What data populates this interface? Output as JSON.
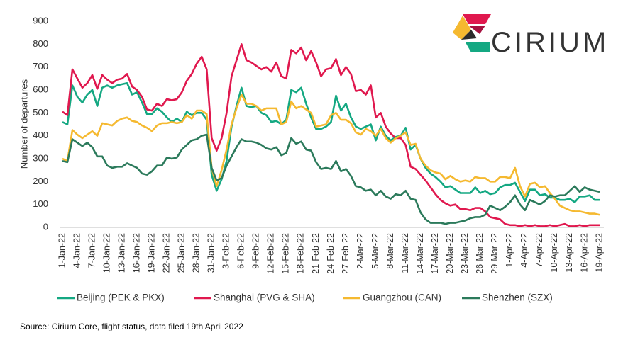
{
  "chart_data": {
    "type": "line",
    "y_label": "Number of departures",
    "source": "Source: Cirium Core, flight status, data filed 19th April 2022",
    "logo": "CIRIUM",
    "ylim": [
      0,
      900
    ],
    "yticks": [
      0,
      100,
      200,
      300,
      400,
      500,
      600,
      700,
      800,
      900
    ],
    "grid": false,
    "legend": "bottom",
    "categories": [
      "1-Jan-22",
      null,
      null,
      "4-Jan-22",
      null,
      null,
      "7-Jan-22",
      null,
      null,
      "10-Jan-22",
      null,
      null,
      "13-Jan-22",
      null,
      null,
      "16-Jan-22",
      null,
      null,
      "19-Jan-22",
      null,
      null,
      "22-Jan-22",
      null,
      null,
      "25-Jan-22",
      null,
      null,
      "28-Jan-22",
      null,
      null,
      "31-Jan-22",
      null,
      null,
      "3-Feb-22",
      null,
      null,
      "6-Feb-22",
      null,
      null,
      "9-Feb-22",
      null,
      null,
      "12-Feb-22",
      null,
      null,
      "15-Feb-22",
      null,
      null,
      "18-Feb-22",
      null,
      null,
      "21-Feb-22",
      null,
      null,
      "24-Feb-22",
      null,
      null,
      "27-Feb-22",
      null,
      null,
      "2-Mar-22",
      null,
      null,
      "5-Mar-22",
      null,
      null,
      "8-Mar-22",
      null,
      null,
      "11-Mar-22",
      null,
      null,
      "14-Mar-22",
      null,
      null,
      "17-Mar-22",
      null,
      null,
      "20-Mar-22",
      null,
      null,
      "23-Mar-22",
      null,
      null,
      "26-Mar-22",
      null,
      null,
      "29-Mar-22",
      null,
      null,
      "1-Apr-22",
      null,
      null,
      "4-Apr-22",
      null,
      null,
      "7-Apr-22",
      null,
      null,
      "10-Apr-22",
      null,
      null,
      "13-Apr-22",
      null,
      null,
      "16-Apr-22",
      null,
      null,
      "19-Apr-22"
    ],
    "series": [
      {
        "name": "Beijing (PEK & PKX)",
        "color": "#14a882",
        "values": [
          460,
          450,
          620,
          570,
          545,
          580,
          600,
          530,
          610,
          620,
          610,
          620,
          625,
          630,
          580,
          590,
          545,
          495,
          495,
          520,
          505,
          480,
          460,
          475,
          460,
          505,
          490,
          500,
          500,
          470,
          230,
          160,
          210,
          290,
          440,
          530,
          610,
          530,
          525,
          530,
          500,
          490,
          460,
          465,
          450,
          470,
          600,
          590,
          610,
          540,
          480,
          430,
          430,
          440,
          460,
          575,
          510,
          540,
          480,
          440,
          430,
          440,
          450,
          380,
          440,
          400,
          380,
          395,
          400,
          435,
          340,
          360,
          300,
          260,
          235,
          220,
          200,
          175,
          180,
          165,
          150,
          150,
          150,
          175,
          150,
          160,
          145,
          150,
          175,
          185,
          185,
          195,
          155,
          115,
          165,
          165,
          140,
          145,
          130,
          130,
          120,
          120,
          125,
          110,
          135,
          135,
          140,
          120,
          120
        ]
      },
      {
        "name": "Shanghai (PVG & SHA)",
        "color": "#e0184e",
        "values": [
          505,
          490,
          690,
          650,
          610,
          630,
          665,
          605,
          665,
          645,
          630,
          645,
          650,
          670,
          615,
          600,
          570,
          515,
          510,
          540,
          530,
          560,
          555,
          560,
          590,
          640,
          670,
          715,
          745,
          690,
          390,
          335,
          390,
          500,
          660,
          730,
          800,
          730,
          720,
          705,
          690,
          700,
          680,
          720,
          660,
          650,
          775,
          760,
          785,
          730,
          770,
          720,
          660,
          690,
          695,
          735,
          665,
          700,
          670,
          595,
          600,
          580,
          620,
          480,
          500,
          440,
          410,
          390,
          390,
          360,
          265,
          255,
          230,
          205,
          175,
          145,
          120,
          105,
          95,
          100,
          80,
          80,
          75,
          85,
          85,
          70,
          45,
          40,
          35,
          15,
          10,
          10,
          5,
          10,
          5,
          10,
          5,
          5,
          10,
          5,
          10,
          15,
          5,
          5,
          10,
          5,
          10,
          10,
          10
        ]
      },
      {
        "name": "Guangzhou (CAN)",
        "color": "#f5b930",
        "values": [
          300,
          290,
          425,
          405,
          390,
          405,
          420,
          400,
          455,
          450,
          445,
          465,
          475,
          480,
          465,
          460,
          445,
          435,
          420,
          445,
          455,
          455,
          460,
          455,
          460,
          490,
          475,
          510,
          510,
          495,
          260,
          180,
          250,
          340,
          450,
          520,
          580,
          540,
          540,
          530,
          510,
          520,
          520,
          520,
          450,
          460,
          550,
          520,
          530,
          515,
          500,
          440,
          445,
          450,
          490,
          500,
          470,
          470,
          455,
          415,
          405,
          430,
          420,
          400,
          430,
          390,
          370,
          390,
          400,
          415,
          360,
          365,
          300,
          270,
          250,
          240,
          235,
          210,
          225,
          210,
          200,
          205,
          200,
          220,
          215,
          215,
          200,
          200,
          220,
          220,
          215,
          260,
          180,
          135,
          190,
          195,
          175,
          180,
          150,
          125,
          95,
          85,
          75,
          70,
          70,
          65,
          60,
          60,
          55
        ]
      },
      {
        "name": "Shenzhen (SZX)",
        "color": "#2b7a5b",
        "values": [
          290,
          285,
          385,
          370,
          355,
          370,
          350,
          310,
          310,
          270,
          260,
          265,
          265,
          280,
          270,
          260,
          235,
          230,
          245,
          270,
          270,
          305,
          300,
          305,
          340,
          360,
          380,
          385,
          400,
          405,
          260,
          205,
          215,
          270,
          310,
          350,
          385,
          375,
          375,
          370,
          360,
          345,
          340,
          350,
          315,
          325,
          390,
          365,
          375,
          340,
          335,
          285,
          255,
          260,
          255,
          290,
          245,
          255,
          225,
          180,
          175,
          160,
          165,
          140,
          160,
          135,
          125,
          145,
          140,
          160,
          125,
          120,
          65,
          35,
          20,
          20,
          20,
          15,
          20,
          20,
          25,
          30,
          40,
          45,
          45,
          55,
          95,
          85,
          75,
          90,
          110,
          140,
          100,
          75,
          120,
          110,
          100,
          115,
          140,
          135,
          140,
          140,
          160,
          180,
          155,
          175,
          165,
          160,
          155
        ]
      }
    ]
  }
}
